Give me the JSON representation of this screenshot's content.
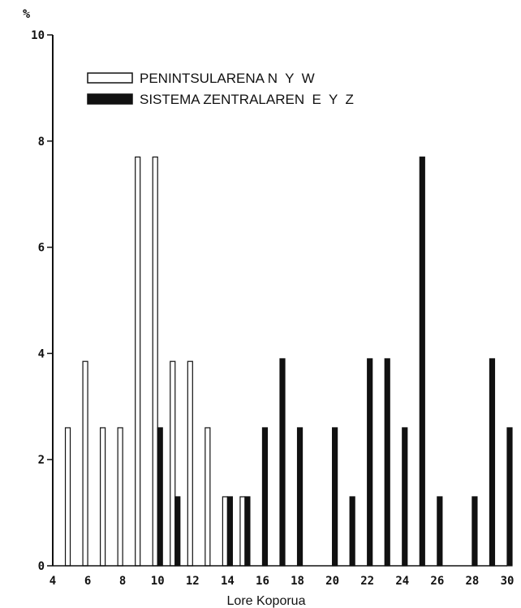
{
  "chart_data": {
    "type": "bar",
    "y_unit": "%",
    "xlabel": "Lore Koporua",
    "ylabel": "",
    "xlim": [
      4,
      30
    ],
    "ylim": [
      0,
      10
    ],
    "x_ticks": [
      4,
      6,
      8,
      10,
      12,
      14,
      16,
      18,
      20,
      22,
      24,
      26,
      28,
      30
    ],
    "y_ticks": [
      0,
      2,
      4,
      6,
      8,
      10
    ],
    "grid": false,
    "legend_position": "top-left",
    "series": [
      {
        "name": "PENINTSULARENA N  Y  W",
        "style": "hollow",
        "color": "#ffffff",
        "points": [
          {
            "x": 5,
            "y": 2.6
          },
          {
            "x": 6,
            "y": 3.85
          },
          {
            "x": 7,
            "y": 2.6
          },
          {
            "x": 8,
            "y": 2.6
          },
          {
            "x": 9,
            "y": 7.7
          },
          {
            "x": 10,
            "y": 7.7
          },
          {
            "x": 11,
            "y": 3.85
          },
          {
            "x": 12,
            "y": 3.85
          },
          {
            "x": 13,
            "y": 2.6
          },
          {
            "x": 14,
            "y": 1.3
          },
          {
            "x": 15,
            "y": 1.3
          }
        ]
      },
      {
        "name": "SISTEMA ZENTRALAREN  E  Y  Z",
        "style": "solid",
        "color": "#111111",
        "points": [
          {
            "x": 10,
            "y": 2.6
          },
          {
            "x": 11,
            "y": 1.3
          },
          {
            "x": 14,
            "y": 1.3
          },
          {
            "x": 15,
            "y": 1.3
          },
          {
            "x": 16,
            "y": 2.6
          },
          {
            "x": 17,
            "y": 3.9
          },
          {
            "x": 18,
            "y": 2.6
          },
          {
            "x": 20,
            "y": 2.6
          },
          {
            "x": 21,
            "y": 1.3
          },
          {
            "x": 22,
            "y": 3.9
          },
          {
            "x": 23,
            "y": 3.9
          },
          {
            "x": 24,
            "y": 2.6
          },
          {
            "x": 25,
            "y": 7.7
          },
          {
            "x": 26,
            "y": 1.3
          },
          {
            "x": 28,
            "y": 1.3
          },
          {
            "x": 29,
            "y": 3.9
          },
          {
            "x": 30,
            "y": 2.6
          }
        ]
      }
    ]
  }
}
